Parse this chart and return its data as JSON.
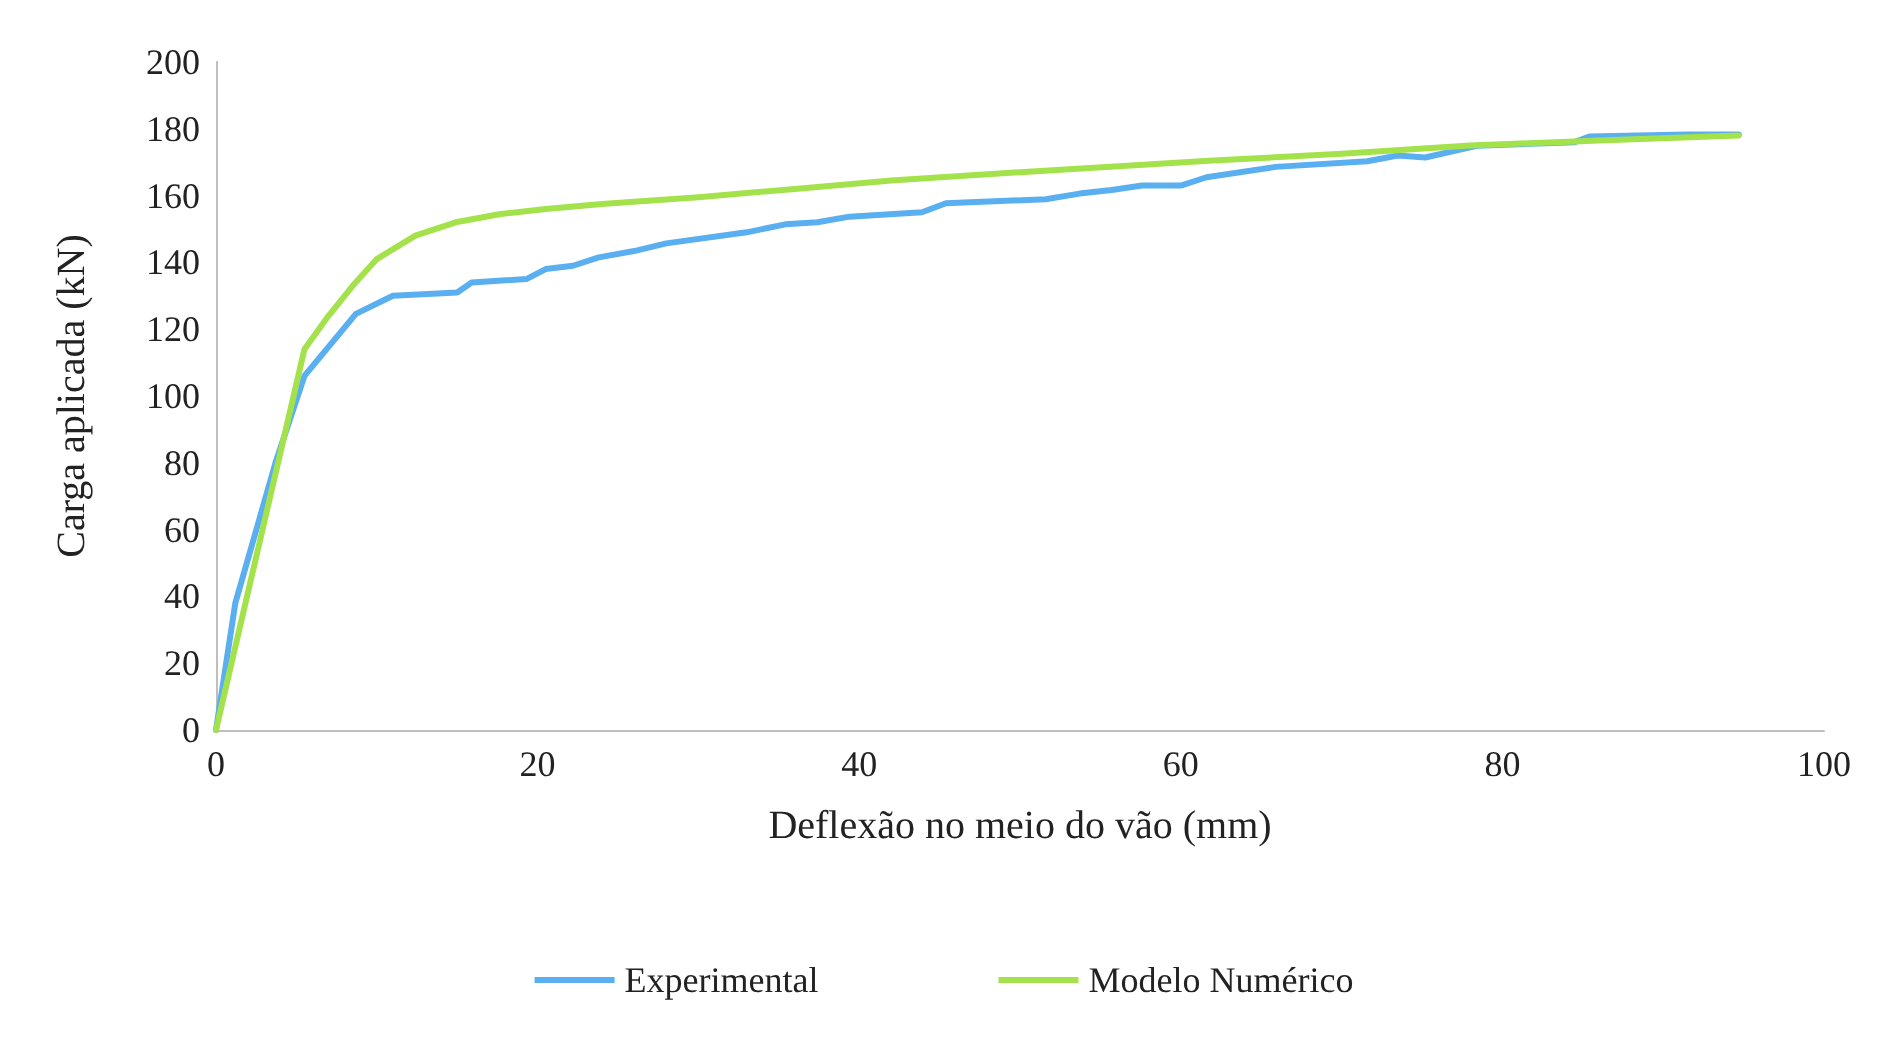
{
  "chart_data": {
    "type": "line",
    "xlabel": "Deflexão no meio do vão (mm)",
    "ylabel": "Carga aplicada (kN)",
    "xlim": [
      0,
      100
    ],
    "xticks": [
      0,
      20,
      40,
      60,
      80,
      100
    ],
    "ylim": [
      0,
      200
    ],
    "yticks": [
      0,
      20,
      40,
      60,
      80,
      100,
      120,
      140,
      160,
      180,
      200
    ],
    "grid": false,
    "legend": "bottom",
    "marker": "none",
    "line_style": "solid",
    "series": [
      {
        "name": "Experimental",
        "color": "#5aaff0",
        "x": [
          0,
          1.2,
          3.7,
          5.5,
          8.7,
          11,
          15,
          15.9,
          19.3,
          20.5,
          22.2,
          23.8,
          26,
          28,
          33,
          35.4,
          37.4,
          39.4,
          43.9,
          45.4,
          48.4,
          51.6,
          53.7,
          55.7,
          57.6,
          60,
          61.6,
          65.9,
          71.6,
          73.5,
          75.2,
          78.4,
          84.5,
          85.4,
          91.5,
          94.7
        ],
        "values": [
          0,
          38,
          80,
          106,
          124.6,
          130,
          131,
          134,
          135,
          138,
          139,
          141.5,
          143.4,
          145.7,
          149,
          151.4,
          152,
          153.7,
          155,
          157.7,
          158.3,
          158.9,
          160.6,
          161.7,
          163,
          163,
          165.5,
          168.6,
          170.3,
          172,
          171.4,
          174.9,
          176,
          177.7,
          178.3,
          178.3
        ]
      },
      {
        "name": "Modelo Numérico",
        "color": "#a4e24c",
        "x": [
          0,
          5.5,
          7,
          8.5,
          10,
          12.4,
          14.9,
          17.7,
          20.5,
          24,
          30,
          36,
          42,
          50,
          62,
          70,
          78,
          86,
          94.7
        ],
        "values": [
          0,
          114,
          124,
          133,
          141,
          148,
          152,
          154.5,
          156,
          157.5,
          159.5,
          162,
          164.5,
          167,
          170.5,
          172.5,
          175,
          176.5,
          178
        ]
      }
    ]
  }
}
